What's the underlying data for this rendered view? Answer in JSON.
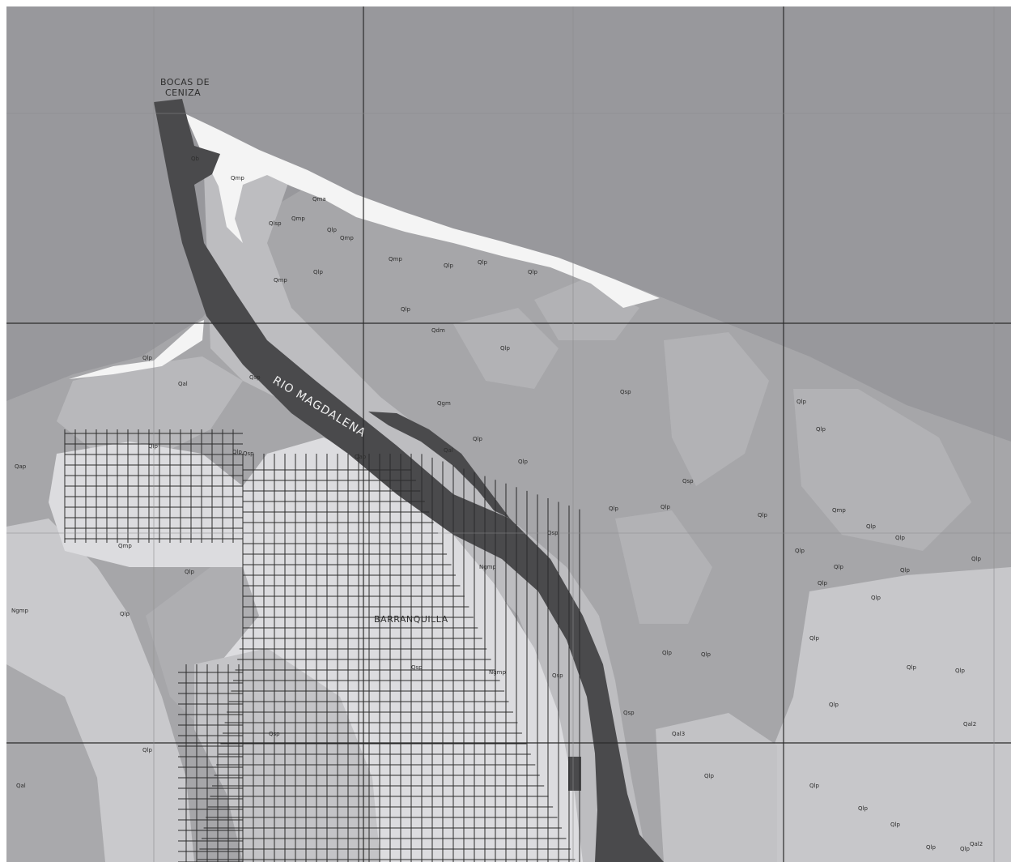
{
  "map": {
    "places": {
      "river_mouth": [
        "BOCAS DE",
        "CENIZA"
      ],
      "river": "RIO MAGDALENA",
      "city": "BARRANQUILLA"
    },
    "unit_labels": [
      "Qb",
      "Qmp",
      "Qma",
      "Qlsp",
      "Qmp",
      "Qlp",
      "Qmp",
      "Qmp",
      "Qlp",
      "Qmp",
      "Qlp",
      "Qlp",
      "Qlp",
      "Qlp",
      "Qdm",
      "Qlp",
      "Qlp",
      "Qal",
      "Qsp",
      "Qgm",
      "Qlp",
      "Qlp",
      "Qap",
      "Qal",
      "Qlp",
      "Qlp",
      "Qsp",
      "Qlp",
      "Qlp",
      "Qsp",
      "Qlp",
      "Qlp",
      "Qlp",
      "Qmp",
      "Qlp",
      "Qlp",
      "Qlp",
      "Qlp",
      "Qlp",
      "Qlp",
      "Qmp",
      "Qlp",
      "Ngmp",
      "Qlp",
      "Qsp",
      "Qsp",
      "Qsp",
      "Ngmp",
      "Qap",
      "Qsp",
      "Ngmp",
      "Qal",
      "Qsp",
      "Qsp",
      "Qlp",
      "Qlp",
      "Qlp",
      "Qlp",
      "Qlp",
      "Qlp",
      "Qlp",
      "Qlp",
      "Qlp",
      "Qlp",
      "Qlp",
      "Qlp",
      "Qlp",
      "Qlp",
      "Qlp",
      "Qal2",
      "Qal3",
      "Qal2"
    ]
  },
  "colors": {
    "sea": "#98989c",
    "river": "#4a4a4c",
    "beach": "#f4f4f4",
    "unit_dark": "#a3a3a6",
    "unit_mid": "#b4b4b7",
    "unit_light": "#c6c6c9",
    "urban": "#dcdcdf",
    "gridline": "#2b2b2b"
  }
}
